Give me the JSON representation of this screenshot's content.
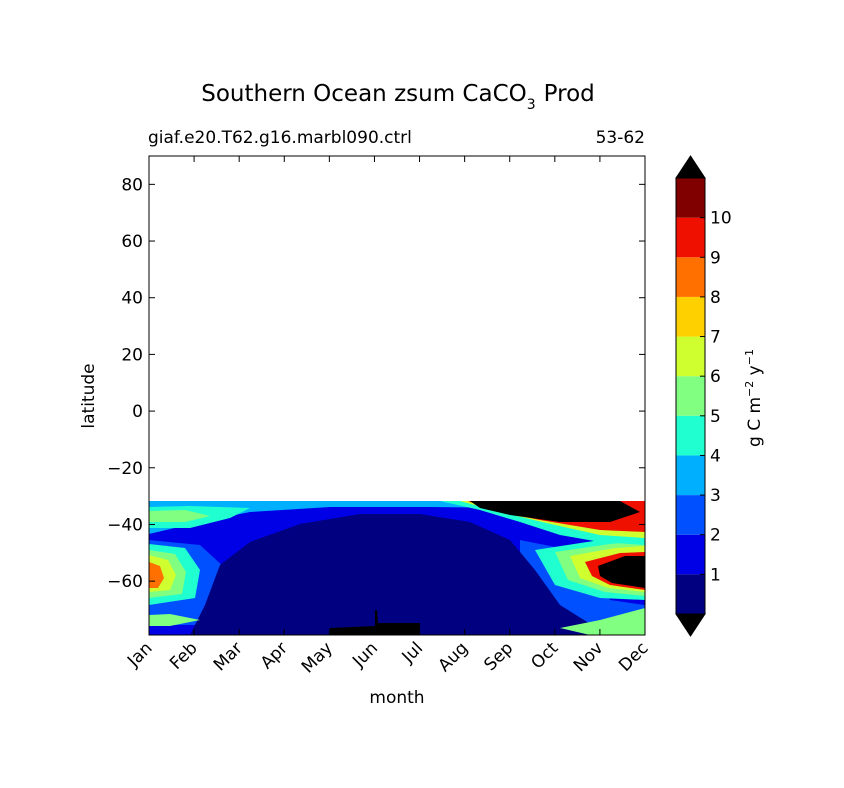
{
  "chart_data": {
    "type": "heatmap",
    "title_main": "Southern Ocean zsum CaCO",
    "title_sub": "3",
    "title_tail": "Prod",
    "left_subtitle": "giaf.e20.T62.g16.marbl090.ctrl",
    "right_subtitle": "53-62",
    "xlabel": "month",
    "ylabel": "latitude",
    "x_ticks": [
      "Jan",
      "Feb",
      "Mar",
      "Apr",
      "May",
      "Jun",
      "Jul",
      "Aug",
      "Sep",
      "Oct",
      "Nov",
      "Dec"
    ],
    "y_ticks": [
      {
        "value": 80,
        "label": "80"
      },
      {
        "value": 60,
        "label": "60"
      },
      {
        "value": 40,
        "label": "40"
      },
      {
        "value": 20,
        "label": "20"
      },
      {
        "value": 0,
        "label": "0"
      },
      {
        "value": -20,
        "label": "−20"
      },
      {
        "value": -40,
        "label": "−40"
      },
      {
        "value": -60,
        "label": "−60"
      }
    ],
    "ylim": [
      -79,
      90
    ],
    "data_lat_max": -32,
    "colorbar": {
      "label_main": "g C m",
      "sup1": "−2",
      "label_mid": " y",
      "sup2": "−1",
      "levels": [
        0,
        1,
        2,
        3,
        4,
        5,
        6,
        7,
        8,
        9,
        10,
        11
      ],
      "tick_labels": [
        "1",
        "2",
        "3",
        "4",
        "5",
        "6",
        "7",
        "8",
        "9",
        "10"
      ],
      "colors": [
        "#000080",
        "#0000e6",
        "#0050ff",
        "#00b0ff",
        "#20ffd0",
        "#80ff80",
        "#d0ff30",
        "#ffd000",
        "#ff7000",
        "#f01000",
        "#800000"
      ],
      "extend_color": "#000000"
    }
  }
}
